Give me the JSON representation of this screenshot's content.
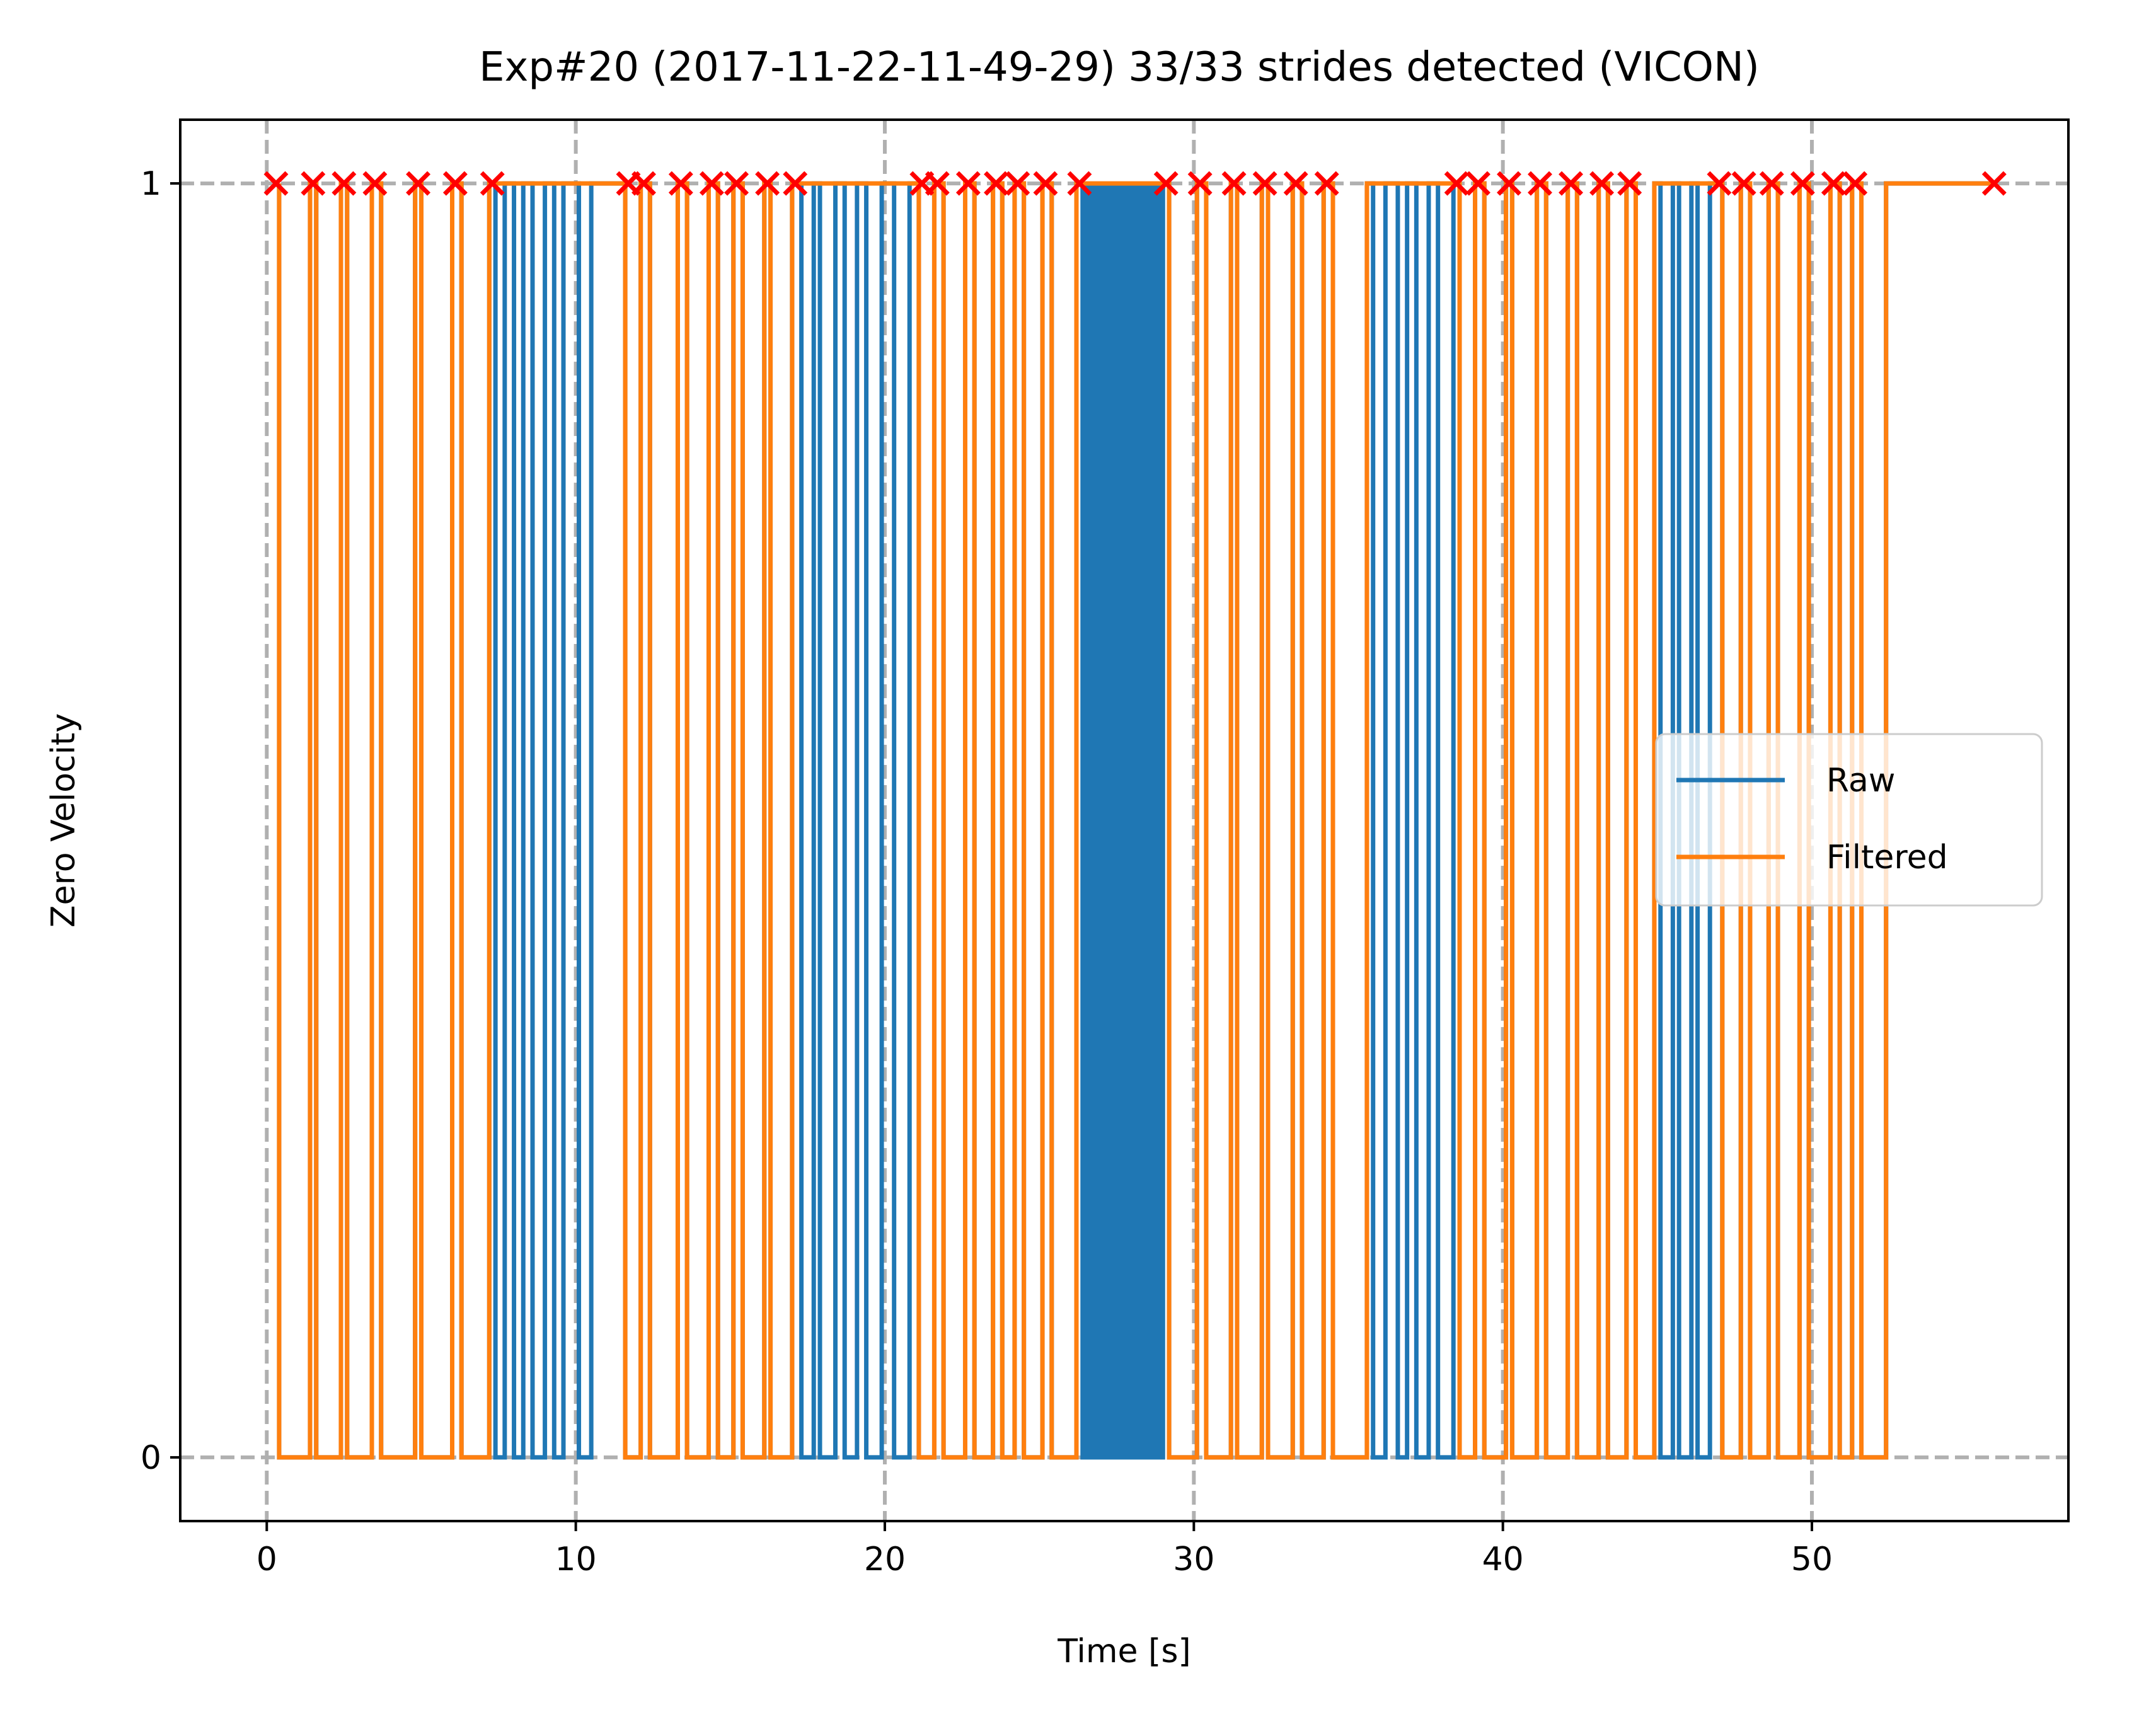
{
  "chart_data": {
    "type": "line",
    "title": "Exp#20 (2017-11-22-11-49-29) 33/33 strides detected (VICON)",
    "xlabel": "Time [s]",
    "ylabel": "Zero Velocity",
    "xlim": [
      -2.8,
      58.3
    ],
    "ylim": [
      -0.05,
      1.05
    ],
    "xticks": [
      0,
      10,
      20,
      30,
      40,
      50
    ],
    "yticks": [
      0,
      1
    ],
    "grid": true,
    "legend_position": "center-right",
    "series": [
      {
        "name": "Raw",
        "color": "#1f77b4",
        "step": true,
        "intervals_zero": [
          [
            0.4,
            1.4
          ],
          [
            1.6,
            2.4
          ],
          [
            2.6,
            3.4
          ],
          [
            3.7,
            4.8
          ],
          [
            5.0,
            6.0
          ],
          [
            6.3,
            7.2
          ],
          [
            7.4,
            7.7
          ],
          [
            8.0,
            8.3
          ],
          [
            8.6,
            9.0
          ],
          [
            9.3,
            9.6
          ],
          [
            10.1,
            10.5
          ],
          [
            11.6,
            12.1
          ],
          [
            12.4,
            13.3
          ],
          [
            13.6,
            14.3
          ],
          [
            14.6,
            15.1
          ],
          [
            15.4,
            16.1
          ],
          [
            16.3,
            17.0
          ],
          [
            17.3,
            17.7
          ],
          [
            17.9,
            18.4
          ],
          [
            18.7,
            19.1
          ],
          [
            19.4,
            19.9
          ],
          [
            20.3,
            20.8
          ],
          [
            21.1,
            21.6
          ],
          [
            21.9,
            22.6
          ],
          [
            22.9,
            23.5
          ],
          [
            23.8,
            24.2
          ],
          [
            24.5,
            25.1
          ],
          [
            25.4,
            26.2
          ],
          [
            26.4,
            29.0
          ],
          [
            29.2,
            30.1
          ],
          [
            30.4,
            31.2
          ],
          [
            31.4,
            32.2
          ],
          [
            32.4,
            33.2
          ],
          [
            33.5,
            34.2
          ],
          [
            34.5,
            35.6
          ],
          [
            35.8,
            36.2
          ],
          [
            36.6,
            36.9
          ],
          [
            37.2,
            37.6
          ],
          [
            37.9,
            38.4
          ],
          [
            38.6,
            39.1
          ],
          [
            39.4,
            40.1
          ],
          [
            40.3,
            41.1
          ],
          [
            41.4,
            42.1
          ],
          [
            42.4,
            43.1
          ],
          [
            43.4,
            44.0
          ],
          [
            44.3,
            44.9
          ],
          [
            45.1,
            45.5
          ],
          [
            45.7,
            46.1
          ],
          [
            46.3,
            46.7
          ],
          [
            47.1,
            47.7
          ],
          [
            48.0,
            48.6
          ],
          [
            48.9,
            49.6
          ],
          [
            49.9,
            50.6
          ],
          [
            50.9,
            51.3
          ],
          [
            51.6,
            52.4
          ]
        ],
        "dense_region": [
          26.4,
          29.0
        ],
        "end": 55.9
      },
      {
        "name": "Filtered",
        "color": "#ff7f0e",
        "step": true,
        "intervals_zero": [
          [
            0.4,
            1.4
          ],
          [
            1.6,
            2.4
          ],
          [
            2.6,
            3.4
          ],
          [
            3.7,
            4.8
          ],
          [
            5.0,
            6.0
          ],
          [
            6.3,
            7.2
          ],
          [
            11.6,
            12.1
          ],
          [
            12.4,
            13.3
          ],
          [
            13.6,
            14.3
          ],
          [
            14.6,
            15.1
          ],
          [
            15.4,
            16.1
          ],
          [
            16.3,
            17.0
          ],
          [
            21.1,
            21.6
          ],
          [
            21.9,
            22.6
          ],
          [
            22.9,
            23.5
          ],
          [
            23.8,
            24.2
          ],
          [
            24.5,
            25.1
          ],
          [
            25.4,
            26.2
          ],
          [
            29.2,
            30.1
          ],
          [
            30.4,
            31.2
          ],
          [
            31.4,
            32.2
          ],
          [
            32.4,
            33.2
          ],
          [
            33.5,
            34.2
          ],
          [
            34.5,
            35.6
          ],
          [
            38.6,
            39.1
          ],
          [
            39.4,
            40.1
          ],
          [
            40.3,
            41.1
          ],
          [
            41.4,
            42.1
          ],
          [
            42.4,
            43.1
          ],
          [
            43.4,
            44.0
          ],
          [
            44.3,
            44.9
          ],
          [
            47.1,
            47.7
          ],
          [
            48.0,
            48.6
          ],
          [
            48.9,
            49.6
          ],
          [
            49.9,
            50.6
          ],
          [
            50.9,
            51.3
          ],
          [
            51.6,
            52.4
          ]
        ],
        "end": 55.9
      },
      {
        "name": "",
        "color": "#ff0000",
        "marker": "x",
        "x": [
          0.3,
          1.5,
          2.5,
          3.5,
          4.9,
          6.1,
          7.3,
          11.7,
          12.2,
          13.4,
          14.4,
          15.2,
          16.2,
          17.1,
          21.2,
          21.7,
          22.7,
          23.6,
          24.3,
          25.2,
          26.3,
          29.1,
          30.2,
          31.3,
          32.3,
          33.3,
          34.3,
          38.5,
          39.2,
          40.2,
          41.2,
          42.2,
          43.2,
          44.1,
          47.0,
          47.8,
          48.7,
          49.7,
          50.7,
          51.4,
          55.9
        ],
        "y": 1
      }
    ]
  }
}
